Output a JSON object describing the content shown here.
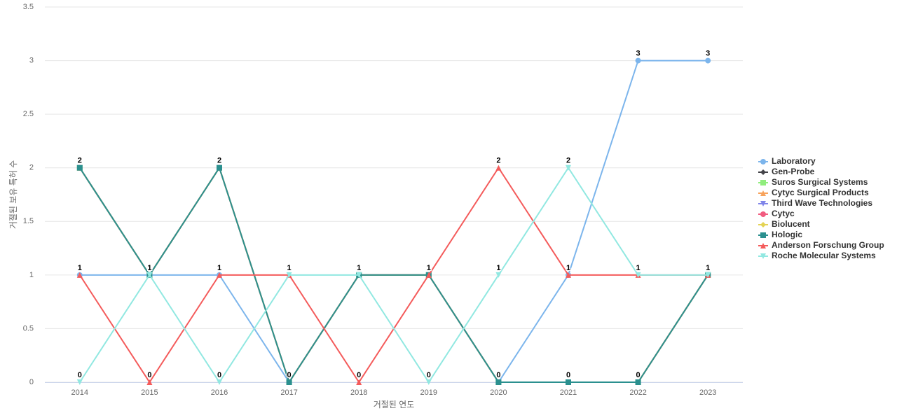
{
  "chart_data": {
    "type": "line",
    "x_label": "거절된 연도",
    "y_label": "거절된 보유 특허 수",
    "categories": [
      "2014",
      "2015",
      "2016",
      "2017",
      "2018",
      "2019",
      "2020",
      "2021",
      "2022",
      "2023"
    ],
    "ylim": [
      0,
      3.5
    ],
    "yticks": [
      0,
      0.5,
      1,
      1.5,
      2,
      2.5,
      3,
      3.5
    ],
    "grid": true,
    "legend": "right",
    "series": [
      {
        "name": "Laboratory",
        "color": "#7cb5ec",
        "values": [
          1,
          1,
          1,
          0,
          1,
          1,
          0,
          1,
          3,
          3
        ]
      },
      {
        "name": "Gen-Probe",
        "color": "#434348",
        "values": [
          2,
          1,
          2,
          0,
          1,
          1,
          0,
          0,
          0,
          1
        ]
      },
      {
        "name": "Suros Surgical Systems",
        "color": "#90ed7d",
        "values": [
          2,
          1,
          2,
          0,
          1,
          1,
          0,
          0,
          0,
          1
        ]
      },
      {
        "name": "Cytyc Surgical Products",
        "color": "#f7a35c",
        "values": [
          2,
          1,
          2,
          0,
          1,
          1,
          0,
          0,
          0,
          1
        ]
      },
      {
        "name": "Third Wave Technologies",
        "color": "#8085e9",
        "values": [
          2,
          1,
          2,
          0,
          1,
          1,
          0,
          0,
          0,
          1
        ]
      },
      {
        "name": "Cytyc",
        "color": "#f15c80",
        "values": [
          2,
          1,
          2,
          0,
          1,
          1,
          0,
          0,
          0,
          1
        ]
      },
      {
        "name": "Biolucent",
        "color": "#e4d354",
        "values": [
          2,
          1,
          2,
          0,
          1,
          1,
          0,
          0,
          0,
          1
        ]
      },
      {
        "name": "Hologic",
        "color": "#2b908f",
        "values": [
          2,
          1,
          2,
          0,
          1,
          1,
          0,
          0,
          0,
          1
        ]
      },
      {
        "name": "Anderson Forschung Group",
        "color": "#f45b5b",
        "values": [
          1,
          0,
          1,
          1,
          0,
          1,
          2,
          1,
          1,
          1
        ]
      },
      {
        "name": "Roche Molecular Systems",
        "color": "#91e8e1",
        "values": [
          0,
          1,
          0,
          1,
          1,
          0,
          1,
          2,
          1,
          1
        ]
      }
    ]
  }
}
